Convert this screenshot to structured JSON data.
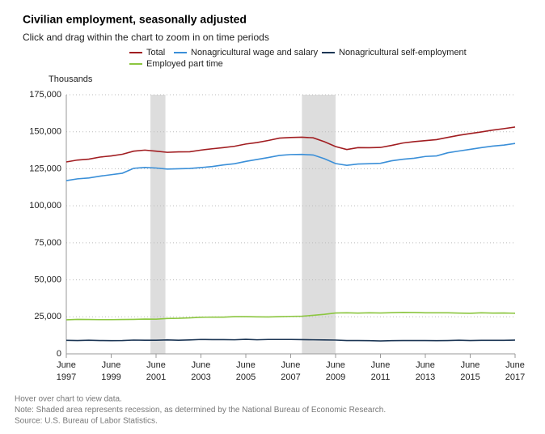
{
  "chart_data": {
    "type": "line",
    "title": "Civilian employment, seasonally adjusted",
    "subtitle": "Click and drag within the chart to zoom in on time periods",
    "y_label": "Thousands",
    "notes": [
      "Hover over chart to view data.",
      "Note: Shaded area represents recession, as determined by the National Bureau of Economic Research.",
      "Source: U.S. Bureau of Labor Statistics."
    ],
    "x": [
      "1997-06",
      "1997-12",
      "1998-06",
      "1998-12",
      "1999-06",
      "1999-12",
      "2000-06",
      "2000-12",
      "2001-06",
      "2001-12",
      "2002-06",
      "2002-12",
      "2003-06",
      "2003-12",
      "2004-06",
      "2004-12",
      "2005-06",
      "2005-12",
      "2006-06",
      "2006-12",
      "2007-06",
      "2007-12",
      "2008-06",
      "2008-12",
      "2009-06",
      "2009-12",
      "2010-06",
      "2010-12",
      "2011-06",
      "2011-12",
      "2012-06",
      "2012-12",
      "2013-06",
      "2013-12",
      "2014-06",
      "2014-12",
      "2015-06",
      "2015-12",
      "2016-06",
      "2016-12",
      "2017-06"
    ],
    "xlim": [
      "1997-06",
      "2017-06"
    ],
    "xticks": [
      {
        "value": "1997-06",
        "label": [
          "June",
          "1997"
        ]
      },
      {
        "value": "1999-06",
        "label": [
          "June",
          "1999"
        ]
      },
      {
        "value": "2001-06",
        "label": [
          "June",
          "2001"
        ]
      },
      {
        "value": "2003-06",
        "label": [
          "June",
          "2003"
        ]
      },
      {
        "value": "2005-06",
        "label": [
          "June",
          "2005"
        ]
      },
      {
        "value": "2007-06",
        "label": [
          "June",
          "2007"
        ]
      },
      {
        "value": "2009-06",
        "label": [
          "June",
          "2009"
        ]
      },
      {
        "value": "2011-06",
        "label": [
          "June",
          "2011"
        ]
      },
      {
        "value": "2013-06",
        "label": [
          "June",
          "2013"
        ]
      },
      {
        "value": "2015-06",
        "label": [
          "June",
          "2015"
        ]
      },
      {
        "value": "2017-06",
        "label": [
          "June",
          "2017"
        ]
      }
    ],
    "recessions": [
      [
        "2001-03",
        "2001-11"
      ],
      [
        "2007-12",
        "2009-06"
      ]
    ],
    "recession_color": "#dddddd",
    "ylim": [
      0,
      175000
    ],
    "yticks": [
      0,
      {
        "value": 25000,
        "label": "25,000"
      },
      {
        "value": 50000,
        "label": "50,000"
      },
      {
        "value": 75000,
        "label": "75,000"
      },
      {
        "value": 100000,
        "label": "100,000"
      },
      {
        "value": 125000,
        "label": "125,000"
      },
      {
        "value": 150000,
        "label": "150,000"
      },
      {
        "value": 175000,
        "label": "175,000"
      }
    ],
    "grid": true,
    "series": [
      {
        "name": "Total",
        "color": "#a11d21",
        "values": [
          129600,
          130900,
          131500,
          132900,
          133700,
          134800,
          136900,
          137600,
          136900,
          136100,
          136400,
          136500,
          137600,
          138500,
          139300,
          140200,
          141700,
          142700,
          144100,
          145700,
          146100,
          146300,
          145900,
          143300,
          140000,
          138000,
          139300,
          139200,
          139400,
          140800,
          142400,
          143300,
          144000,
          144700,
          146200,
          147600,
          148800,
          149900,
          151100,
          152100,
          153200
        ]
      },
      {
        "name": "Nonagricultural wage and salary",
        "color": "#3a8fd8",
        "values": [
          117000,
          118200,
          118800,
          120000,
          121000,
          122000,
          125300,
          125900,
          125500,
          124800,
          125000,
          125200,
          125800,
          126500,
          127600,
          128400,
          130000,
          131300,
          132600,
          134000,
          134600,
          134700,
          134300,
          131800,
          128500,
          127300,
          128200,
          128400,
          128700,
          130400,
          131400,
          132100,
          133300,
          133700,
          135800,
          137000,
          138100,
          139300,
          140300,
          141000,
          142100
        ]
      },
      {
        "name": "Nonagricultural self-employment",
        "color": "#1c3655",
        "values": [
          9100,
          9000,
          9200,
          9000,
          8900,
          9000,
          9300,
          9200,
          9200,
          9400,
          9200,
          9400,
          9700,
          9600,
          9600,
          9500,
          9800,
          9500,
          9700,
          9700,
          9700,
          9600,
          9500,
          9400,
          9300,
          9000,
          9000,
          8900,
          8700,
          8900,
          9000,
          9000,
          9000,
          8900,
          9000,
          9200,
          9000,
          9100,
          9100,
          9100,
          9300
        ]
      },
      {
        "name": "Employed part time",
        "color": "#8cc640",
        "values": [
          23000,
          23300,
          23200,
          23100,
          23100,
          23200,
          23300,
          23500,
          23400,
          23900,
          24000,
          24300,
          24700,
          24800,
          24800,
          25100,
          25100,
          25000,
          24900,
          25100,
          25300,
          25400,
          26000,
          26700,
          27600,
          27700,
          27500,
          27700,
          27600,
          27800,
          28000,
          27900,
          27700,
          27700,
          27700,
          27500,
          27400,
          27700,
          27500,
          27600,
          27400
        ]
      }
    ]
  }
}
